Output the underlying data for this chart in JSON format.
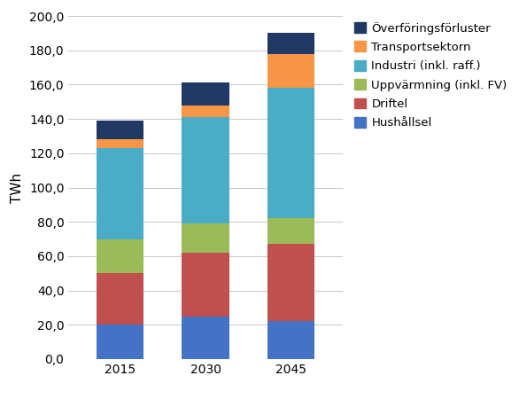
{
  "years": [
    "2015",
    "2030",
    "2045"
  ],
  "series": [
    {
      "label": "Hushållsel",
      "values": [
        20.0,
        25.0,
        22.0
      ],
      "color": "#4472C4"
    },
    {
      "label": "Driftel",
      "values": [
        30.0,
        37.0,
        45.0
      ],
      "color": "#C0504D"
    },
    {
      "label": "Uppvärmning (inkl. FV)",
      "values": [
        20.0,
        17.0,
        15.0
      ],
      "color": "#9BBB59"
    },
    {
      "label": "Industri (inkl. raff.)",
      "values": [
        53.0,
        62.0,
        76.0
      ],
      "color": "#4BACC6"
    },
    {
      "label": "Transportsektorn",
      "values": [
        5.0,
        7.0,
        20.0
      ],
      "color": "#F79646"
    },
    {
      "label": "Överföringsförluster",
      "values": [
        11.0,
        13.0,
        12.0
      ],
      "color": "#1F3864"
    }
  ],
  "ylabel": "TWh",
  "ylim": [
    0,
    200
  ],
  "yticks": [
    0.0,
    20.0,
    40.0,
    60.0,
    80.0,
    100.0,
    120.0,
    140.0,
    160.0,
    180.0,
    200.0
  ],
  "bar_width": 0.55,
  "background_color": "#ffffff",
  "grid_color": "#c8c8c8",
  "legend_fontsize": 9.5,
  "tick_fontsize": 10,
  "ylabel_fontsize": 11
}
